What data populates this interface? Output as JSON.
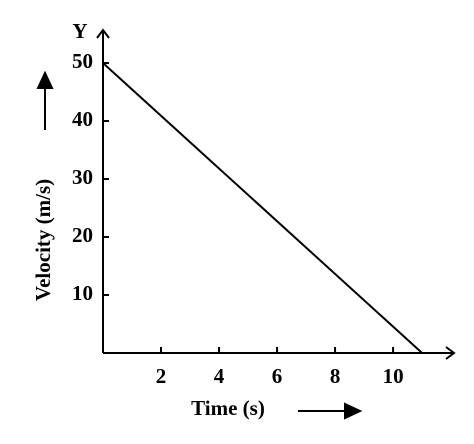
{
  "chart_data": {
    "type": "line",
    "x_label": "Time (s)",
    "y_label": "Velocity (m/s)",
    "y_axis_letter": "Y",
    "series": [
      {
        "name": "velocity",
        "color": "#000000",
        "x": [
          0,
          11
        ],
        "values": [
          50,
          0
        ]
      }
    ],
    "xlim": [
      0,
      12.1
    ],
    "ylim": [
      0,
      55.7
    ],
    "xticks": [
      2,
      4,
      6,
      8,
      10
    ],
    "yticks": [
      10,
      20,
      30,
      40,
      50
    ],
    "grid": false
  }
}
